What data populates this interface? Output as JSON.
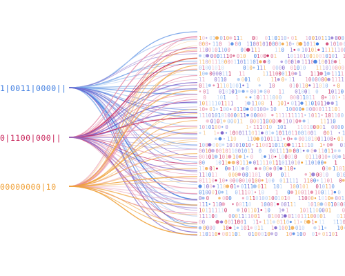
{
  "sources": [
    {
      "id": "blue",
      "text": "1|0011|0000||",
      "color": "#3b7be0"
    },
    {
      "id": "crimson",
      "text": "0|1100|000||",
      "color": "#c8245a"
    },
    {
      "id": "amber",
      "text": "00000000|10",
      "color": "#f0a23a"
    }
  ],
  "palette": {
    "blue": "#3b7be0",
    "crimson": "#c8245a",
    "amber": "#f0a23a",
    "purple": "#7a5ec8",
    "light_blue": "#9ec1ef",
    "pink": "#e78aa8"
  }
}
